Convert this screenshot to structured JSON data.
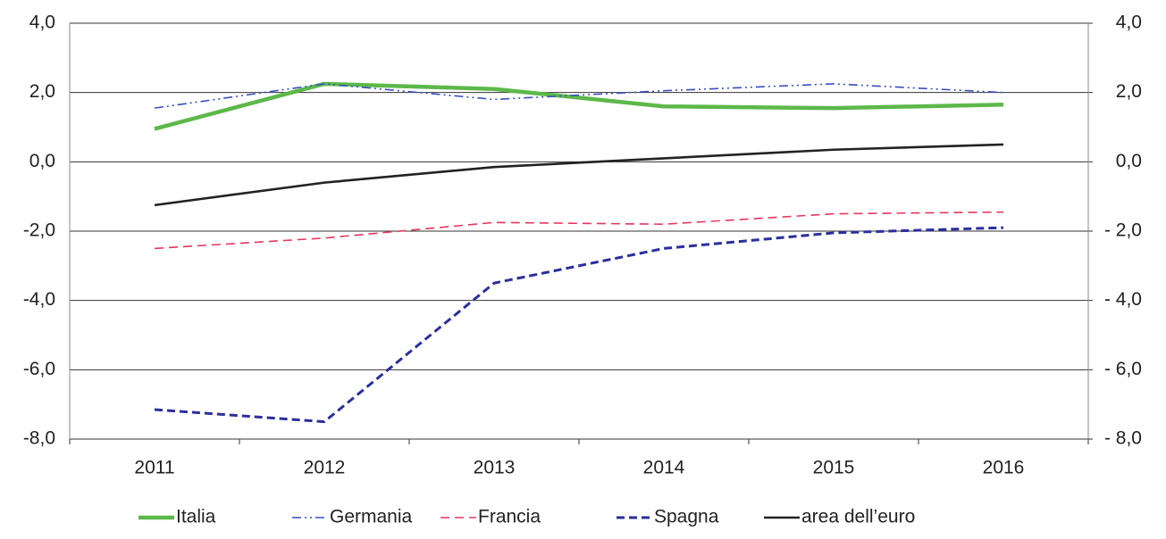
{
  "chart_data": {
    "type": "line",
    "categories": [
      "2011",
      "2012",
      "2013",
      "2014",
      "2015",
      "2016"
    ],
    "series": [
      {
        "name": "Italia",
        "color": "#5cb84a",
        "values": [
          0.95,
          2.25,
          2.1,
          1.6,
          1.55,
          1.65
        ]
      },
      {
        "name": "Germania",
        "color": "#3a4fc0",
        "values": [
          1.55,
          2.25,
          1.8,
          2.05,
          2.25,
          2.0
        ]
      },
      {
        "name": "Francia",
        "color": "#e8365d",
        "values": [
          -2.5,
          -2.2,
          -1.75,
          -1.8,
          -1.5,
          -1.45
        ]
      },
      {
        "name": "Spagna",
        "color": "#2b2f9e",
        "values": [
          -7.15,
          -7.5,
          -3.5,
          -2.5,
          -2.05,
          -1.9
        ]
      },
      {
        "name": "area dell’euro",
        "color": "#222222",
        "values": [
          -1.25,
          -0.6,
          -0.15,
          0.1,
          0.35,
          0.5
        ]
      }
    ],
    "ylim": [
      -8,
      4
    ],
    "yticks": [
      {
        "value": 4,
        "label": "4,0"
      },
      {
        "value": 2,
        "label": "2,0"
      },
      {
        "value": 0,
        "label": "0,0"
      },
      {
        "value": -2,
        "label": "-2,0"
      },
      {
        "value": -4,
        "label": "-4,0"
      },
      {
        "value": -6,
        "label": "-6,0"
      },
      {
        "value": -8,
        "label": "-8,0"
      }
    ],
    "y2lim": [
      -8,
      4
    ],
    "y2ticks": [
      {
        "value": 4,
        "label": "4,0"
      },
      {
        "value": 2,
        "label": "2,0"
      },
      {
        "value": 0,
        "label": "0,0"
      },
      {
        "value": -2,
        "label": "- 2,0"
      },
      {
        "value": -4,
        "label": "- 4,0"
      },
      {
        "value": -6,
        "label": "- 6,0"
      },
      {
        "value": -8,
        "label": "- 8,0"
      }
    ],
    "grid": true,
    "legend": "bottom"
  }
}
